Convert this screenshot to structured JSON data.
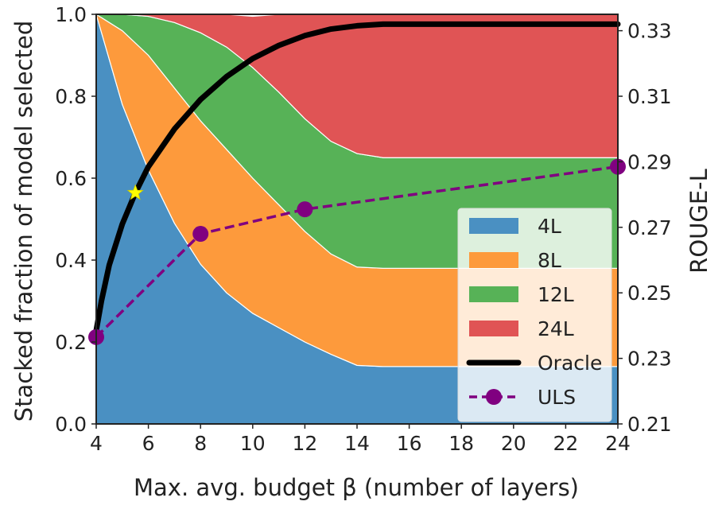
{
  "chart_data": {
    "type": "area",
    "title": "",
    "xlabel": "Max. avg. budget β (number of layers)",
    "ylabel": "Stacked fraction of model selected",
    "y2label": "ROUGE-L",
    "xlim": [
      4,
      24
    ],
    "ylim": [
      0,
      1
    ],
    "y2lim": [
      0.21,
      0.335
    ],
    "x_ticks": [
      4,
      6,
      8,
      10,
      12,
      14,
      16,
      18,
      20,
      22,
      24
    ],
    "y_ticks": [
      "0.0",
      "0.2",
      "0.4",
      "0.6",
      "0.8",
      "1.0"
    ],
    "y2_ticks": [
      "0.21",
      "0.23",
      "0.25",
      "0.27",
      "0.29",
      "0.31",
      "0.33"
    ],
    "x": [
      4,
      5,
      6,
      7,
      8,
      9,
      10,
      11,
      12,
      13,
      14,
      15,
      16,
      18,
      20,
      22,
      24
    ],
    "stacked_series": [
      {
        "name": "4L",
        "color": "#4a90c2",
        "values": [
          1.0,
          0.78,
          0.62,
          0.49,
          0.39,
          0.32,
          0.27,
          0.235,
          0.2,
          0.17,
          0.143,
          0.14,
          0.14,
          0.14,
          0.14,
          0.14,
          0.14
        ]
      },
      {
        "name": "8L",
        "color": "#fd9a3c",
        "values": [
          0.0,
          0.18,
          0.28,
          0.33,
          0.35,
          0.35,
          0.33,
          0.3,
          0.27,
          0.245,
          0.24,
          0.24,
          0.24,
          0.24,
          0.24,
          0.24,
          0.24
        ]
      },
      {
        "name": "12L",
        "color": "#57b257",
        "values": [
          0.0,
          0.04,
          0.095,
          0.16,
          0.215,
          0.25,
          0.27,
          0.275,
          0.275,
          0.275,
          0.277,
          0.27,
          0.27,
          0.27,
          0.27,
          0.27,
          0.27
        ]
      },
      {
        "name": "24L",
        "color": "#e05455",
        "values": [
          0.0,
          0.0,
          0.005,
          0.02,
          0.045,
          0.08,
          0.125,
          0.19,
          0.255,
          0.31,
          0.34,
          0.35,
          0.35,
          0.35,
          0.35,
          0.35,
          0.35
        ]
      }
    ],
    "oracle": {
      "name": "Oracle",
      "color": "#000000",
      "x": [
        4,
        4.2,
        4.5,
        5,
        5.5,
        6,
        7,
        8,
        9,
        10,
        11,
        12,
        13,
        14,
        15,
        16,
        18,
        20,
        22,
        24
      ],
      "values": [
        0.2385,
        0.2475,
        0.2585,
        0.271,
        0.2805,
        0.2885,
        0.3,
        0.309,
        0.316,
        0.3215,
        0.3255,
        0.3285,
        0.3305,
        0.3315,
        0.332,
        0.332,
        0.332,
        0.332,
        0.332,
        0.332
      ]
    },
    "uls": {
      "name": "ULS",
      "color": "#800080",
      "x": [
        4,
        8,
        12,
        24
      ],
      "values": [
        0.2365,
        0.268,
        0.2755,
        0.2885
      ]
    },
    "star": {
      "x": 5.5,
      "value": 0.2805,
      "color": "#ffff00"
    },
    "legend_position": "bottom-right",
    "legend": [
      "4L",
      "8L",
      "12L",
      "24L",
      "Oracle",
      "ULS"
    ]
  }
}
